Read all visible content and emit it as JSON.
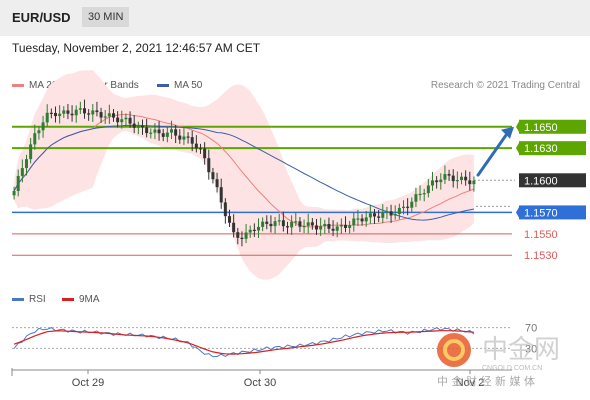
{
  "header": {
    "pair": "EUR/USD",
    "timeframe": "30 MIN"
  },
  "timestamp": "Tuesday, November 2, 2021 12:46:57 AM CET",
  "legend": {
    "ma20": "MA 20 + Bollinger Bands",
    "ma50": "MA 50",
    "research": "Research © 2021 Trading Central",
    "rsi": "RSI",
    "ma9": "9MA"
  },
  "colors": {
    "resistance": "#5da500",
    "support": "#2f6fd8",
    "last": "#333333",
    "ma20": "#f08080",
    "ma50": "#3a5fa8",
    "band_fill": "#fde3e3",
    "candle_up": "#2e7d32",
    "candle_down": "#333333",
    "support_low": "#e05a5a",
    "rsi": "#4a78c8",
    "rsi_ma": "#d82020",
    "arrow": "#2f6db3"
  },
  "watermark": {
    "brand": "中金网",
    "url": "CNGOLD.COM.CN",
    "tagline": "中 金 财 经 新 媒 体"
  },
  "chart_data": {
    "type": "candlestick",
    "title": "EUR/USD",
    "timeframe": "30 MIN",
    "x_tick_labels": [
      "Oct 29",
      "Oct 30",
      "Nov 2"
    ],
    "ylim": [
      1.1505,
      1.1675
    ],
    "levels": [
      {
        "value": 1.165,
        "label": "1.1650",
        "kind": "resistance"
      },
      {
        "value": 1.163,
        "label": "1.1630",
        "kind": "resistance"
      },
      {
        "value": 1.16,
        "label": "1.1600",
        "kind": "last"
      },
      {
        "value": 1.157,
        "label": "1.1570",
        "kind": "pivot"
      },
      {
        "value": 1.155,
        "label": "1.1550",
        "kind": "support"
      },
      {
        "value": 1.153,
        "label": "1.1530",
        "kind": "support"
      }
    ],
    "close_path": [
      1.159,
      1.1618,
      1.1642,
      1.166,
      1.1663,
      1.1662,
      1.1665,
      1.1664,
      1.1662,
      1.166,
      1.1657,
      1.1655,
      1.1648,
      1.1646,
      1.1643,
      1.1645,
      1.164,
      1.1637,
      1.1625,
      1.1602,
      1.1575,
      1.1549,
      1.1547,
      1.1556,
      1.1559,
      1.1561,
      1.1558,
      1.156,
      1.1558,
      1.1557,
      1.1556,
      1.1555,
      1.1559,
      1.1564,
      1.1566,
      1.1568,
      1.1569,
      1.1572,
      1.158,
      1.1589,
      1.1597,
      1.1604,
      1.1602,
      1.16,
      1.1599
    ],
    "rsi": {
      "levels": [
        70,
        30
      ],
      "values": [
        30,
        50,
        65,
        68,
        66,
        64,
        62,
        62,
        60,
        58,
        57,
        56,
        55,
        52,
        50,
        46,
        40,
        25,
        15,
        16,
        20,
        23,
        26,
        30,
        32,
        34,
        35,
        38,
        42,
        46,
        52,
        56,
        60,
        62,
        64,
        62,
        60,
        62,
        66,
        68,
        66,
        64,
        60
      ],
      "ma9": [
        38,
        46,
        55,
        62,
        64,
        63,
        62,
        61,
        60,
        58,
        56,
        55,
        54,
        52,
        49,
        45,
        40,
        32,
        24,
        20,
        19,
        20,
        22,
        25,
        28,
        30,
        33,
        35,
        38,
        42,
        46,
        51,
        55,
        58,
        60,
        61,
        61,
        62,
        63,
        64,
        64,
        63,
        61
      ]
    },
    "forecast_arrow": {
      "from": 1.1603,
      "to": 1.165
    }
  }
}
